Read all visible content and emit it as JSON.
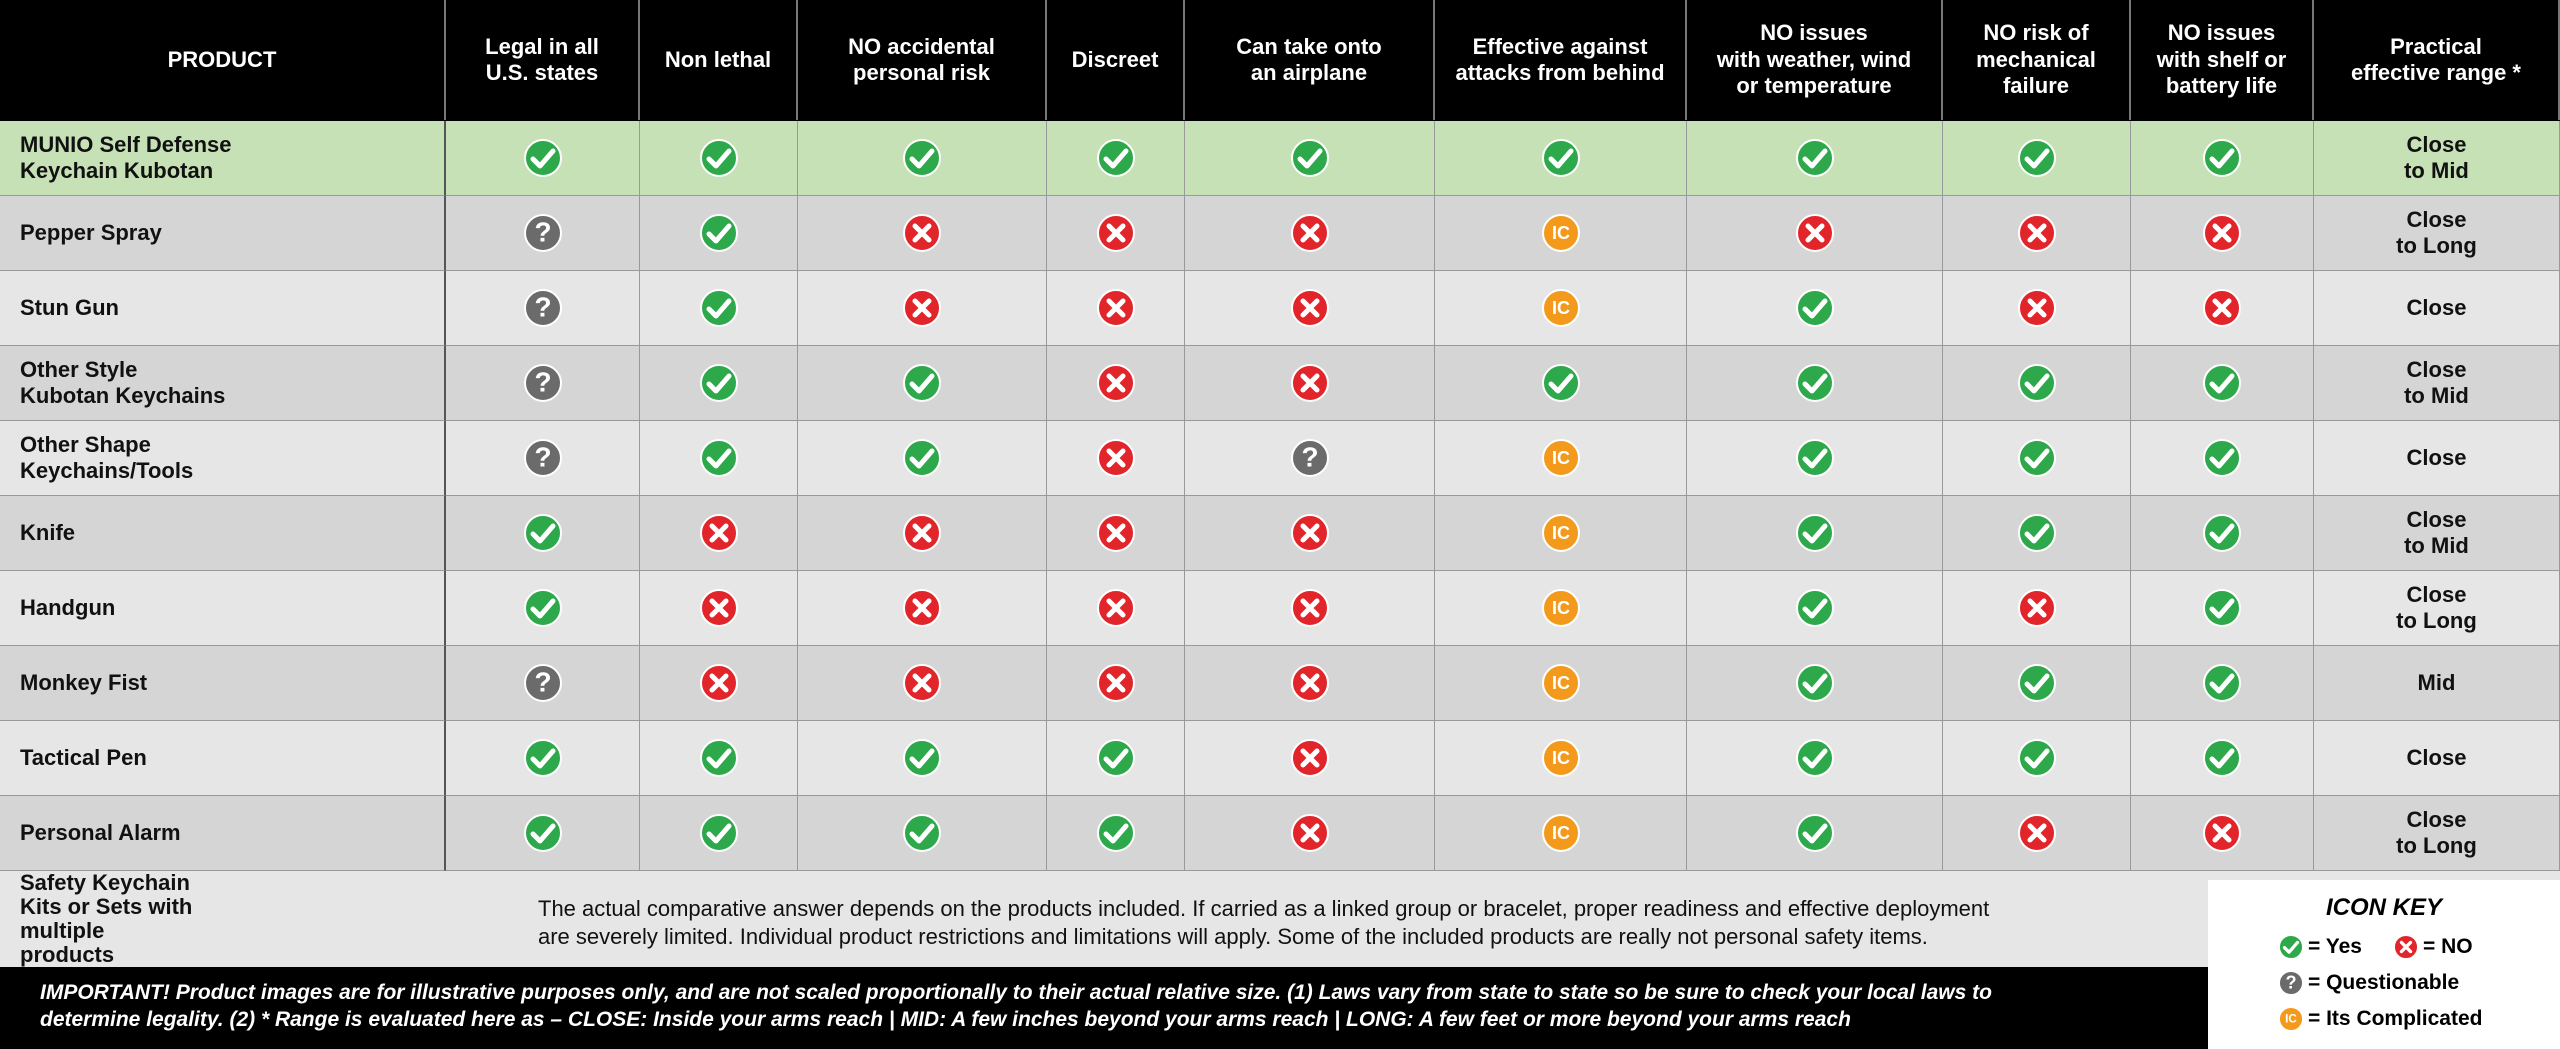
{
  "header": {
    "columns": [
      {
        "lines": [
          "PRODUCT"
        ]
      },
      {
        "lines": [
          "Legal in all",
          "U.S. states"
        ]
      },
      {
        "lines": [
          "Non lethal"
        ]
      },
      {
        "lines": [
          "NO accidental",
          "personal risk"
        ]
      },
      {
        "lines": [
          "Discreet"
        ]
      },
      {
        "lines": [
          "Can take onto",
          "an airplane"
        ]
      },
      {
        "lines": [
          "Effective against",
          "attacks from behind"
        ]
      },
      {
        "lines": [
          "NO issues",
          "with weather, wind",
          "or temperature"
        ]
      },
      {
        "lines": [
          "NO risk of",
          "mechanical",
          "failure"
        ]
      },
      {
        "lines": [
          "NO issues",
          "with shelf or",
          "battery life"
        ]
      },
      {
        "lines": [
          "Practical",
          "effective range *"
        ]
      }
    ]
  },
  "rows": [
    {
      "product": [
        "MUNIO Self Defense",
        "Keychain Kubotan"
      ],
      "cells": [
        0,
        0,
        0,
        0,
        0,
        0,
        0,
        0,
        0
      ],
      "range": [
        "Close",
        "to Mid"
      ]
    },
    {
      "product": [
        "Pepper Spray"
      ],
      "cells": [
        2,
        0,
        1,
        1,
        1,
        3,
        1,
        1,
        1
      ],
      "range": [
        "Close",
        "to Long"
      ]
    },
    {
      "product": [
        "Stun Gun"
      ],
      "cells": [
        2,
        0,
        1,
        1,
        1,
        3,
        0,
        1,
        1
      ],
      "range": [
        "Close"
      ]
    },
    {
      "product": [
        "Other Style",
        "Kubotan Keychains"
      ],
      "cells": [
        2,
        0,
        0,
        1,
        1,
        0,
        0,
        0,
        0
      ],
      "range": [
        "Close",
        "to Mid"
      ]
    },
    {
      "product": [
        "Other Shape",
        "Keychains/Tools"
      ],
      "cells": [
        2,
        0,
        0,
        1,
        2,
        3,
        0,
        0,
        0
      ],
      "range": [
        "Close"
      ]
    },
    {
      "product": [
        "Knife"
      ],
      "cells": [
        0,
        1,
        1,
        1,
        1,
        3,
        0,
        0,
        0
      ],
      "range": [
        "Close",
        "to Mid"
      ]
    },
    {
      "product": [
        "Handgun"
      ],
      "cells": [
        0,
        1,
        1,
        1,
        1,
        3,
        0,
        1,
        0
      ],
      "range": [
        "Close",
        "to Long"
      ]
    },
    {
      "product": [
        "Monkey Fist"
      ],
      "cells": [
        2,
        1,
        1,
        1,
        1,
        3,
        0,
        0,
        0
      ],
      "range": [
        "Mid"
      ]
    },
    {
      "product": [
        "Tactical Pen"
      ],
      "cells": [
        0,
        0,
        0,
        0,
        1,
        3,
        0,
        0,
        0
      ],
      "range": [
        "Close"
      ]
    },
    {
      "product": [
        "Personal Alarm"
      ],
      "cells": [
        0,
        0,
        0,
        0,
        1,
        3,
        0,
        1,
        1
      ],
      "range": [
        "Close",
        "to Long"
      ]
    }
  ],
  "kits": {
    "product": [
      "Safety Keychain",
      "Kits or Sets with",
      "multiple products"
    ],
    "note": [
      "The actual comparative answer depends on the products included. If carried as a linked group or bracelet, proper readiness and effective deployment",
      "are severely limited. Individual product restrictions and limitations will apply. Some of the included products are really not personal safety items."
    ]
  },
  "footer": {
    "lines": [
      "IMPORTANT!  Product images are for illustrative purposes only, and are not scaled proportionally to their actual relative size.    (1) Laws vary from state to state so be sure to check your local laws to",
      "determine legality.    (2)  * Range is evaluated here as –   CLOSE: Inside your arms reach  |  MID: A few inches beyond your arms reach  |  LONG: A few feet or more beyond your arms reach"
    ]
  },
  "icon_key": {
    "title": "ICON KEY",
    "items": [
      {
        "label": "= Yes"
      },
      {
        "label": "= NO"
      },
      {
        "label": "= Questionable",
        "icon_text": "?"
      },
      {
        "label": "= Its Complicated",
        "icon_text": "IC"
      }
    ]
  }
}
